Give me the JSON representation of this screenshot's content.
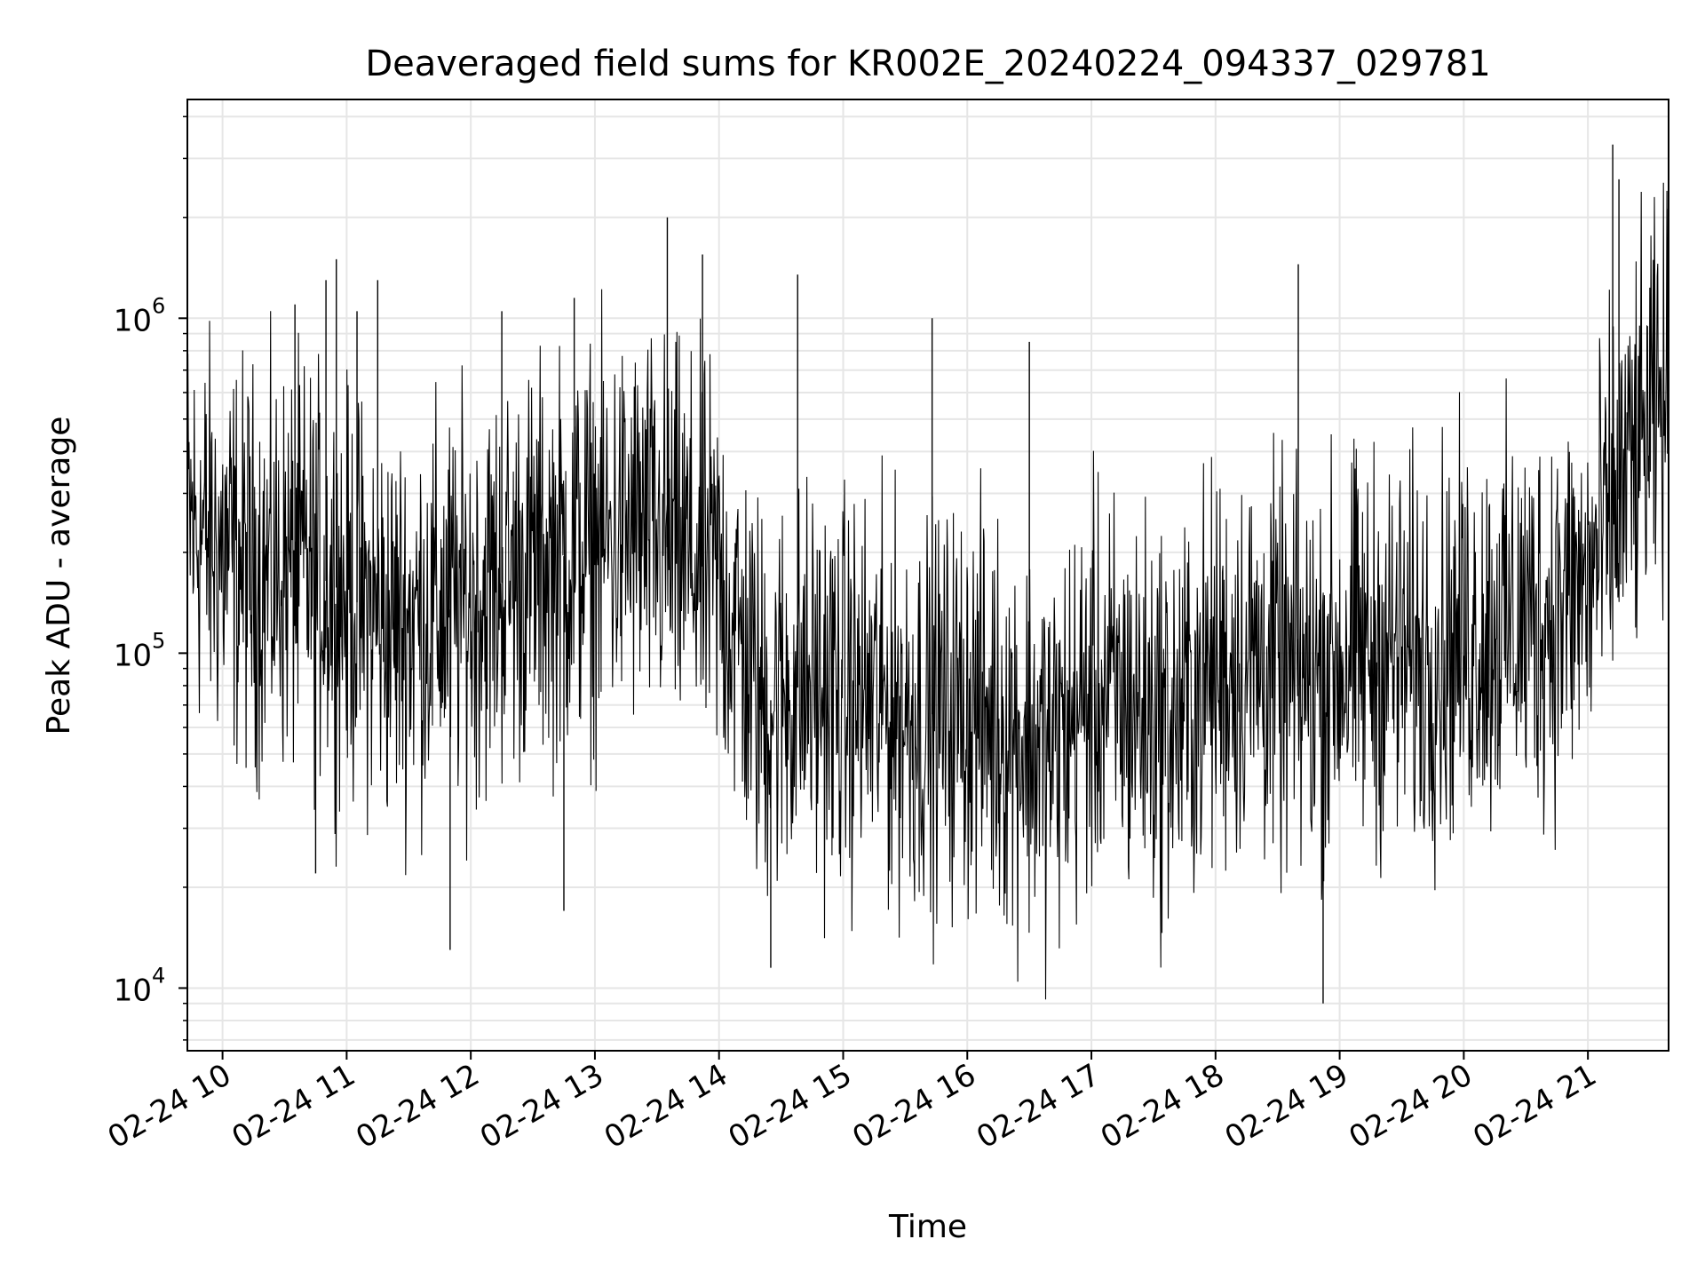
{
  "chart_data": {
    "type": "line",
    "title": "Deaveraged field sums for KR002E_20240224_094337_029781",
    "xlabel": "Time",
    "ylabel": "Peak ADU - average",
    "yscale": "log",
    "ylim": [
      6500,
      4500000
    ],
    "xlim": [
      "2024-02-24 09:43",
      "2024-02-24 21:39"
    ],
    "grid": true,
    "x_ticks": [
      {
        "t": "2024-02-24 10:00",
        "label": "02-24 10"
      },
      {
        "t": "2024-02-24 11:00",
        "label": "02-24 11"
      },
      {
        "t": "2024-02-24 12:00",
        "label": "02-24 12"
      },
      {
        "t": "2024-02-24 13:00",
        "label": "02-24 13"
      },
      {
        "t": "2024-02-24 14:00",
        "label": "02-24 14"
      },
      {
        "t": "2024-02-24 15:00",
        "label": "02-24 15"
      },
      {
        "t": "2024-02-24 16:00",
        "label": "02-24 16"
      },
      {
        "t": "2024-02-24 17:00",
        "label": "02-24 17"
      },
      {
        "t": "2024-02-24 18:00",
        "label": "02-24 18"
      },
      {
        "t": "2024-02-24 19:00",
        "label": "02-24 19"
      },
      {
        "t": "2024-02-24 20:00",
        "label": "02-24 20"
      },
      {
        "t": "2024-02-24 21:00",
        "label": "02-24 21"
      }
    ],
    "y_ticks": [
      {
        "value": 10000,
        "base": "10",
        "exp": "4"
      },
      {
        "value": 100000,
        "base": "10",
        "exp": "5"
      },
      {
        "value": 1000000,
        "base": "10",
        "exp": "6"
      }
    ],
    "series": [
      {
        "color": "#000000",
        "x": [
          "2024-02-24 09:43",
          "2024-02-24 10:00",
          "2024-02-24 10:20",
          "2024-02-24 10:40",
          "2024-02-24 11:00",
          "2024-02-24 11:20",
          "2024-02-24 11:40",
          "2024-02-24 12:00",
          "2024-02-24 12:20",
          "2024-02-24 12:40",
          "2024-02-24 13:00",
          "2024-02-24 13:20",
          "2024-02-24 13:40",
          "2024-02-24 14:00",
          "2024-02-24 14:20",
          "2024-02-24 14:40",
          "2024-02-24 15:00",
          "2024-02-24 15:20",
          "2024-02-24 15:40",
          "2024-02-24 16:00",
          "2024-02-24 16:20",
          "2024-02-24 16:40",
          "2024-02-24 17:00",
          "2024-02-24 17:20",
          "2024-02-24 17:40",
          "2024-02-24 18:00",
          "2024-02-24 18:20",
          "2024-02-24 18:40",
          "2024-02-24 19:00",
          "2024-02-24 19:20",
          "2024-02-24 19:40",
          "2024-02-24 20:00",
          "2024-02-24 20:20",
          "2024-02-24 20:40",
          "2024-02-24 21:00",
          "2024-02-24 21:20",
          "2024-02-24 21:39"
        ],
        "y": [
          250000,
          200000,
          170000,
          180000,
          150000,
          120000,
          130000,
          140000,
          170000,
          190000,
          210000,
          230000,
          200000,
          170000,
          70000,
          80000,
          75000,
          70000,
          65000,
          70000,
          60000,
          50000,
          75000,
          70000,
          60000,
          90000,
          95000,
          80000,
          95000,
          100000,
          95000,
          110000,
          120000,
          130000,
          160000,
          350000,
          600000
        ],
        "spikes": [
          {
            "t": "2024-02-24 10:35",
            "y": 1100000
          },
          {
            "t": "2024-02-24 10:50",
            "y": 1300000
          },
          {
            "t": "2024-02-24 10:55",
            "y": 1500000
          },
          {
            "t": "2024-02-24 11:05",
            "y": 1050000
          },
          {
            "t": "2024-02-24 11:15",
            "y": 1300000
          },
          {
            "t": "2024-02-24 12:15",
            "y": 1050000
          },
          {
            "t": "2024-02-24 12:50",
            "y": 1150000
          },
          {
            "t": "2024-02-24 13:35",
            "y": 2000000
          },
          {
            "t": "2024-02-24 13:52",
            "y": 1550000
          },
          {
            "t": "2024-02-24 14:38",
            "y": 1350000
          },
          {
            "t": "2024-02-24 15:43",
            "y": 1000000
          },
          {
            "t": "2024-02-24 16:30",
            "y": 850000
          },
          {
            "t": "2024-02-24 18:40",
            "y": 1450000
          },
          {
            "t": "2024-02-24 21:12",
            "y": 3300000
          },
          {
            "t": "2024-02-24 21:15",
            "y": 2600000
          },
          {
            "t": "2024-02-24 11:50",
            "y": 13000
          },
          {
            "t": "2024-02-24 14:25",
            "y": 11500
          },
          {
            "t": "2024-02-24 18:52",
            "y": 9000
          },
          {
            "t": "2024-02-24 10:45",
            "y": 22000
          },
          {
            "t": "2024-02-24 12:45",
            "y": 17000
          }
        ]
      }
    ]
  }
}
